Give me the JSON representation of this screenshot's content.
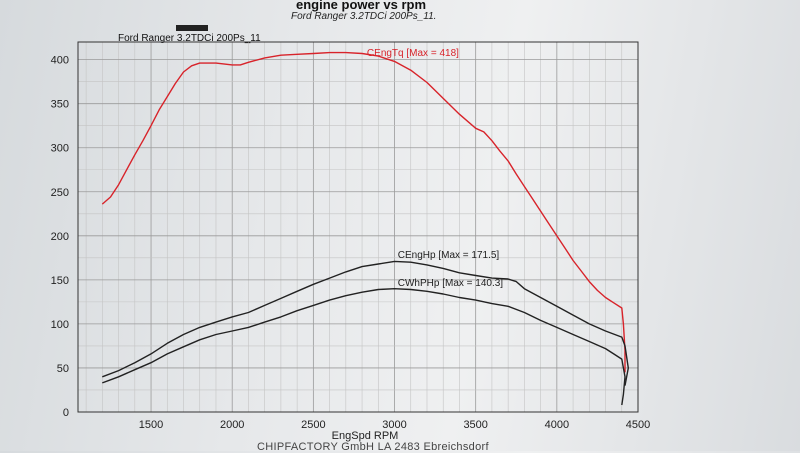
{
  "header": {
    "title": "engine power vs rpm",
    "subtitle": "Ford Ranger 3.2TDCi 200Ps_11."
  },
  "footer": {
    "text": "CHIPFACTORY GmbH LA 2483 Ebreichsdorf"
  },
  "chart_data": {
    "type": "line",
    "title": "Ford Ranger 3.2TDCi 200Ps_11",
    "xlabel": "EngSpd RPM",
    "ylabel": "",
    "xlim": [
      1050,
      4500
    ],
    "ylim": [
      0,
      420
    ],
    "xticks": [
      1500,
      2000,
      2500,
      3000,
      3500,
      4000,
      4500
    ],
    "yticks": [
      0,
      50,
      100,
      150,
      200,
      250,
      300,
      350,
      400
    ],
    "grid": true,
    "legend": "inline labels",
    "series": [
      {
        "name": "CEngTq",
        "label": "CEngTq [Max = 418]",
        "color": "#d8232a",
        "points": [
          [
            1200,
            236
          ],
          [
            1250,
            244
          ],
          [
            1300,
            258
          ],
          [
            1350,
            275
          ],
          [
            1400,
            292
          ],
          [
            1450,
            308
          ],
          [
            1500,
            325
          ],
          [
            1550,
            343
          ],
          [
            1600,
            358
          ],
          [
            1650,
            373
          ],
          [
            1700,
            386
          ],
          [
            1750,
            393
          ],
          [
            1800,
            396
          ],
          [
            1850,
            396
          ],
          [
            1900,
            396
          ],
          [
            2000,
            394
          ],
          [
            2050,
            394
          ],
          [
            2100,
            397
          ],
          [
            2200,
            402
          ],
          [
            2300,
            405
          ],
          [
            2400,
            406
          ],
          [
            2500,
            407
          ],
          [
            2600,
            408
          ],
          [
            2700,
            408
          ],
          [
            2800,
            407
          ],
          [
            2900,
            404
          ],
          [
            3000,
            398
          ],
          [
            3100,
            388
          ],
          [
            3200,
            374
          ],
          [
            3300,
            356
          ],
          [
            3400,
            338
          ],
          [
            3500,
            322
          ],
          [
            3550,
            318
          ],
          [
            3600,
            308
          ],
          [
            3650,
            296
          ],
          [
            3700,
            285
          ],
          [
            3750,
            270
          ],
          [
            3800,
            256
          ],
          [
            3850,
            242
          ],
          [
            3900,
            228
          ],
          [
            3950,
            214
          ],
          [
            4000,
            200
          ],
          [
            4050,
            186
          ],
          [
            4100,
            172
          ],
          [
            4150,
            160
          ],
          [
            4200,
            148
          ],
          [
            4250,
            138
          ],
          [
            4300,
            130
          ],
          [
            4350,
            124
          ],
          [
            4400,
            118
          ],
          [
            4410,
            100
          ],
          [
            4420,
            70
          ],
          [
            4420,
            45
          ]
        ]
      },
      {
        "name": "CEngHp",
        "label": "CEngHp [Max = 171.5]",
        "color": "#222222",
        "points": [
          [
            1200,
            40
          ],
          [
            1300,
            47
          ],
          [
            1400,
            56
          ],
          [
            1500,
            66
          ],
          [
            1600,
            78
          ],
          [
            1700,
            88
          ],
          [
            1800,
            96
          ],
          [
            1900,
            102
          ],
          [
            2000,
            108
          ],
          [
            2100,
            113
          ],
          [
            2200,
            121
          ],
          [
            2300,
            129
          ],
          [
            2400,
            137
          ],
          [
            2500,
            145
          ],
          [
            2600,
            152
          ],
          [
            2700,
            159
          ],
          [
            2800,
            165
          ],
          [
            2900,
            168
          ],
          [
            3000,
            171
          ],
          [
            3100,
            170
          ],
          [
            3200,
            167
          ],
          [
            3300,
            163
          ],
          [
            3400,
            158
          ],
          [
            3500,
            155
          ],
          [
            3600,
            152
          ],
          [
            3700,
            151
          ],
          [
            3750,
            148
          ],
          [
            3800,
            140
          ],
          [
            3900,
            130
          ],
          [
            4000,
            120
          ],
          [
            4100,
            110
          ],
          [
            4200,
            100
          ],
          [
            4300,
            92
          ],
          [
            4400,
            85
          ],
          [
            4420,
            75
          ],
          [
            4440,
            50
          ],
          [
            4420,
            30
          ]
        ]
      },
      {
        "name": "CWhPHp",
        "label": "CWhPHp [Max = 140.3]",
        "color": "#222222",
        "points": [
          [
            1200,
            33
          ],
          [
            1300,
            40
          ],
          [
            1400,
            48
          ],
          [
            1500,
            56
          ],
          [
            1600,
            66
          ],
          [
            1700,
            74
          ],
          [
            1800,
            82
          ],
          [
            1900,
            88
          ],
          [
            2000,
            92
          ],
          [
            2100,
            96
          ],
          [
            2200,
            102
          ],
          [
            2300,
            108
          ],
          [
            2400,
            115
          ],
          [
            2500,
            121
          ],
          [
            2600,
            127
          ],
          [
            2700,
            132
          ],
          [
            2800,
            136
          ],
          [
            2900,
            139
          ],
          [
            3000,
            140
          ],
          [
            3100,
            139
          ],
          [
            3200,
            137
          ],
          [
            3300,
            134
          ],
          [
            3400,
            130
          ],
          [
            3500,
            127
          ],
          [
            3600,
            123
          ],
          [
            3700,
            120
          ],
          [
            3800,
            113
          ],
          [
            3900,
            104
          ],
          [
            4000,
            96
          ],
          [
            4100,
            88
          ],
          [
            4200,
            80
          ],
          [
            4300,
            72
          ],
          [
            4350,
            66
          ],
          [
            4400,
            60
          ],
          [
            4420,
            40
          ],
          [
            4410,
            20
          ],
          [
            4400,
            8
          ]
        ]
      }
    ]
  }
}
